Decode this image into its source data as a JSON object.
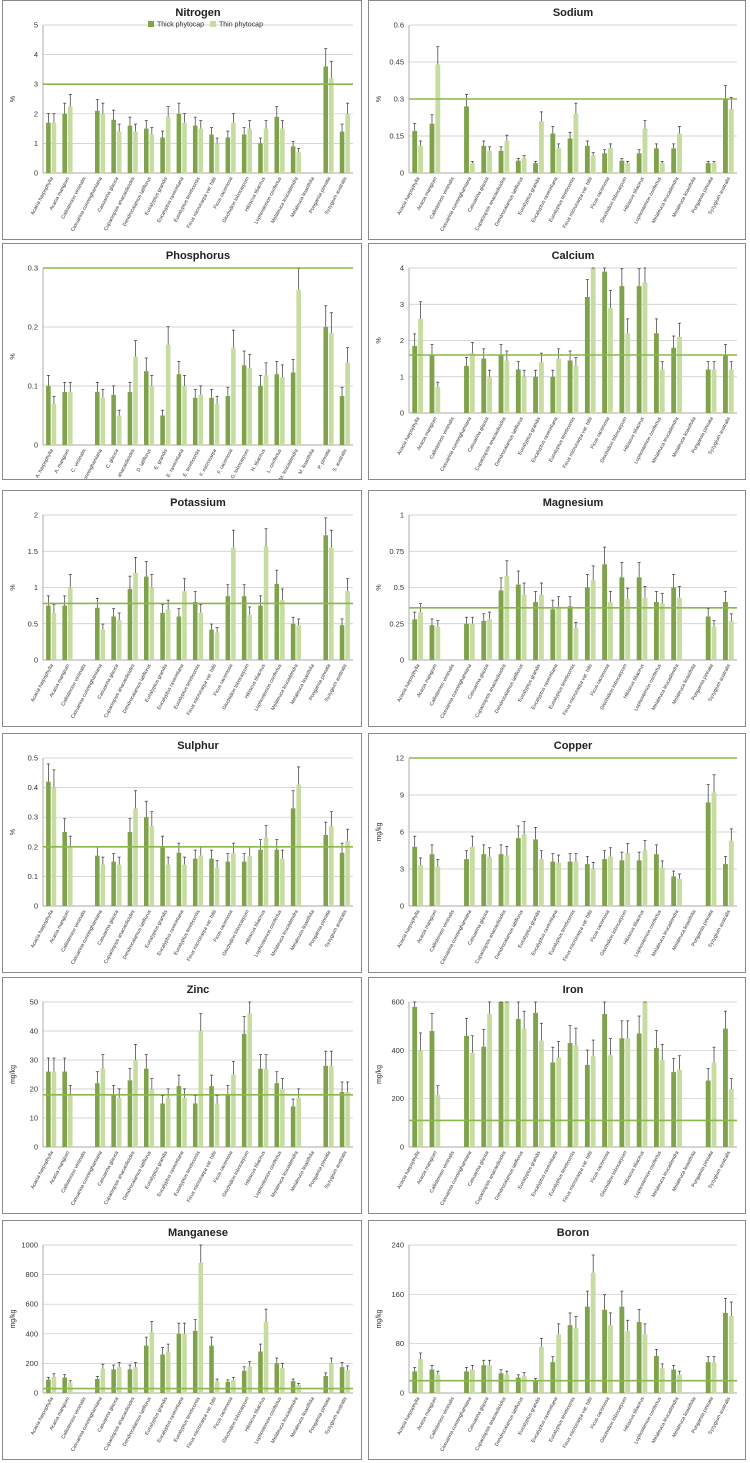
{
  "legend": {
    "thick": "Thick phytocap",
    "thin": "Thin phytocap"
  },
  "colors": {
    "thick": "#7ea34a",
    "thin": "#c6dca0",
    "line": "#8ab84a",
    "grid": "#c8c8c8",
    "err": "#333333"
  },
  "full_categories": [
    "Acacia harpophylla",
    "Acacia mangium",
    "Callistemon viminalis",
    "Casuarina cunninghamiana",
    "Casuarina glauca",
    "Cupaniopsis anacardioides",
    "Dendrocalamus latiflorus",
    "Eucalyptus grandis",
    "Eucalyptus raveretiana",
    "Eucalyptus tereticornis",
    "Ficus microcarpa var. hillii",
    "Ficus racemosa",
    "Glochidion lobocarpum",
    "Hibiscus tiliaceus",
    "Lophostemon confertus",
    "Melaleuca leucadendra",
    "Melaleuca linariifolia",
    "Pongamia pinnata",
    "Syzygium australis"
  ],
  "abbr_categories": [
    "A. harpophylla",
    "A. mangium",
    "C. viminalis",
    "C. cunninghamiana",
    "C. glauca",
    "C. anacardioides",
    "D. latiflorus",
    "E. grandis",
    "E. raveretiana",
    "E. tereticornis",
    "F. microcarpa",
    "F. racemosa",
    "G. lobocarpum",
    "H. tiliaceus",
    "L. confertus",
    "M. leucadendra",
    "M. linariifolia",
    "P. pinnata",
    "S. australis"
  ],
  "chart_data": [
    {
      "type": "bar",
      "title": "Nitrogen",
      "ylabel": "%",
      "ylim": [
        0,
        5
      ],
      "yticks": [
        0,
        1,
        2,
        3,
        4,
        5
      ],
      "reference": 3,
      "legend": "top-center",
      "labels": "full",
      "series": [
        {
          "name": "Thick phytocap",
          "values": [
            1.7,
            2.0,
            null,
            2.1,
            1.8,
            1.6,
            1.5,
            1.2,
            2.0,
            1.6,
            1.3,
            1.2,
            1.3,
            1.0,
            1.9,
            0.9,
            null,
            3.6,
            1.4
          ]
        },
        {
          "name": "Thin phytocap",
          "values": [
            1.7,
            2.25,
            null,
            2.0,
            1.4,
            1.4,
            1.3,
            1.9,
            1.7,
            1.5,
            1.0,
            1.7,
            1.5,
            1.5,
            1.5,
            0.7,
            null,
            3.2,
            2.0
          ]
        }
      ]
    },
    {
      "type": "bar",
      "title": "Sodium",
      "ylabel": "%",
      "ylim": [
        0,
        0.6
      ],
      "yticks": [
        0,
        0.15,
        0.3,
        0.45,
        0.6
      ],
      "reference": 0.3,
      "labels": "full",
      "series": [
        {
          "name": "Thick phytocap",
          "values": [
            0.17,
            0.2,
            null,
            0.27,
            0.11,
            0.09,
            0.05,
            0.04,
            0.16,
            0.14,
            0.11,
            0.08,
            0.05,
            0.08,
            0.1,
            0.1,
            null,
            0.04,
            0.3
          ]
        },
        {
          "name": "Thin phytocap",
          "values": [
            0.11,
            0.44,
            null,
            0.04,
            0.09,
            0.13,
            0.06,
            0.21,
            0.1,
            0.24,
            0.07,
            0.1,
            0.04,
            0.18,
            0.04,
            0.16,
            null,
            0.04,
            0.26
          ]
        }
      ]
    },
    {
      "type": "bar",
      "title": "Phosphorus",
      "ylabel": "%",
      "ylim": [
        0,
        0.3
      ],
      "yticks": [
        0,
        0.1,
        0.2,
        0.3
      ],
      "reference": 0.3,
      "labels": "abbr",
      "series": [
        {
          "name": "Thick phytocap",
          "values": [
            0.1,
            0.09,
            null,
            0.09,
            0.085,
            0.09,
            0.125,
            0.05,
            0.12,
            0.08,
            0.08,
            0.083,
            0.135,
            0.1,
            0.12,
            0.123,
            null,
            0.2,
            0.083
          ]
        },
        {
          "name": "Thin phytocap",
          "values": [
            0.07,
            0.09,
            null,
            0.08,
            0.05,
            0.15,
            0.1,
            0.17,
            0.1,
            0.085,
            0.07,
            0.165,
            0.13,
            0.118,
            0.115,
            0.263,
            null,
            0.19,
            0.14
          ]
        }
      ]
    },
    {
      "type": "bar",
      "title": "Calcium",
      "ylabel": "%",
      "ylim": [
        0,
        4
      ],
      "yticks": [
        0,
        1,
        2,
        3,
        4
      ],
      "reference": 1.6,
      "labels": "full",
      "series": [
        {
          "name": "Thick phytocap",
          "values": [
            1.85,
            1.6,
            null,
            1.3,
            1.5,
            1.6,
            1.2,
            1.0,
            1.0,
            1.45,
            3.2,
            3.9,
            3.5,
            3.5,
            2.2,
            1.8,
            null,
            1.2,
            1.6
          ]
        },
        {
          "name": "Thin phytocap",
          "values": [
            2.6,
            0.72,
            null,
            1.65,
            1.0,
            1.45,
            1.0,
            1.4,
            1.5,
            1.3,
            4.0,
            2.9,
            2.2,
            3.6,
            1.2,
            2.1,
            null,
            1.2,
            1.2
          ]
        }
      ]
    },
    {
      "type": "bar",
      "title": "Potassium",
      "ylabel": "%",
      "ylim": [
        0,
        2
      ],
      "yticks": [
        0,
        0.5,
        1,
        1.5,
        2
      ],
      "reference": 0.78,
      "labels": "full",
      "series": [
        {
          "name": "Thick phytocap",
          "values": [
            0.75,
            0.75,
            null,
            0.72,
            0.6,
            0.98,
            1.15,
            0.65,
            0.6,
            0.8,
            0.42,
            0.88,
            0.88,
            0.75,
            1.05,
            0.5,
            null,
            1.72,
            0.48
          ]
        },
        {
          "name": "Thin phytocap",
          "values": [
            0.65,
            1.0,
            null,
            0.42,
            0.55,
            1.2,
            1.0,
            0.7,
            0.95,
            0.65,
            0.38,
            1.55,
            0.62,
            1.57,
            0.83,
            0.48,
            null,
            1.55,
            0.95
          ]
        }
      ]
    },
    {
      "type": "bar",
      "title": "Magnesium",
      "ylabel": "%",
      "ylim": [
        0,
        1
      ],
      "yticks": [
        0,
        0.25,
        0.5,
        0.75,
        1
      ],
      "reference": 0.36,
      "labels": "full",
      "series": [
        {
          "name": "Thick phytocap",
          "values": [
            0.28,
            0.24,
            null,
            0.25,
            0.27,
            0.48,
            0.52,
            0.4,
            0.35,
            0.37,
            0.5,
            0.66,
            0.57,
            0.57,
            0.4,
            0.5,
            null,
            0.3,
            0.4
          ]
        },
        {
          "name": "Thin phytocap",
          "values": [
            0.33,
            0.23,
            null,
            0.25,
            0.28,
            0.58,
            0.45,
            0.45,
            0.37,
            0.22,
            0.55,
            0.4,
            0.42,
            0.43,
            0.39,
            0.43,
            null,
            0.23,
            0.27
          ]
        }
      ]
    },
    {
      "type": "bar",
      "title": "Sulphur",
      "ylabel": "%",
      "ylim": [
        0,
        0.5
      ],
      "yticks": [
        0,
        0.1,
        0.2,
        0.3,
        0.4,
        0.5
      ],
      "reference": 0.2,
      "labels": "full",
      "series": [
        {
          "name": "Thick phytocap",
          "values": [
            0.42,
            0.25,
            null,
            0.17,
            0.15,
            0.25,
            0.3,
            0.2,
            0.18,
            0.16,
            0.16,
            0.15,
            0.15,
            0.19,
            0.19,
            0.33,
            null,
            0.24,
            0.18
          ]
        },
        {
          "name": "Thin phytocap",
          "values": [
            0.4,
            0.2,
            null,
            0.14,
            0.14,
            0.33,
            0.27,
            0.14,
            0.14,
            0.17,
            0.13,
            0.18,
            0.17,
            0.23,
            0.16,
            0.41,
            null,
            0.27,
            0.22
          ]
        }
      ]
    },
    {
      "type": "bar",
      "title": "Copper",
      "ylabel": "mg/kg",
      "ylim": [
        0,
        12
      ],
      "yticks": [
        0,
        3,
        6,
        9,
        12
      ],
      "reference": 12,
      "labels": "full",
      "series": [
        {
          "name": "Thick phytocap",
          "values": [
            4.8,
            4.2,
            null,
            3.8,
            4.2,
            4.2,
            5.5,
            5.4,
            3.6,
            3.6,
            3.4,
            3.8,
            3.7,
            3.7,
            4.2,
            2.4,
            null,
            8.4,
            3.4
          ]
        },
        {
          "name": "Thin phytocap",
          "values": [
            3.3,
            3.2,
            null,
            4.8,
            4.0,
            4.1,
            5.8,
            3.8,
            3.5,
            3.6,
            3.0,
            4.0,
            4.3,
            4.5,
            3.1,
            2.2,
            null,
            9.2,
            5.3
          ]
        }
      ]
    },
    {
      "type": "bar",
      "title": "Zinc",
      "ylabel": "mg/kg",
      "ylim": [
        0,
        50
      ],
      "yticks": [
        0,
        10,
        20,
        30,
        40,
        50
      ],
      "reference": 18,
      "labels": "full",
      "series": [
        {
          "name": "Thick phytocap",
          "values": [
            26,
            26,
            null,
            22,
            18,
            23,
            27,
            15,
            21,
            15,
            21,
            18,
            39,
            27,
            22,
            14,
            null,
            28,
            19
          ]
        },
        {
          "name": "Thin phytocap",
          "values": [
            26,
            18,
            null,
            27,
            17,
            30,
            20,
            17,
            17,
            40,
            15,
            25,
            46,
            27,
            20,
            17,
            null,
            28,
            19
          ]
        }
      ]
    },
    {
      "type": "bar",
      "title": "Iron",
      "ylabel": "mg/kg",
      "ylim": [
        0,
        600
      ],
      "yticks": [
        0,
        200,
        400,
        600
      ],
      "reference": 110,
      "labels": "full",
      "series": [
        {
          "name": "Thick phytocap",
          "values": [
            580,
            480,
            null,
            460,
            415,
            600,
            530,
            555,
            350,
            430,
            340,
            550,
            450,
            470,
            410,
            310,
            null,
            275,
            490
          ]
        },
        {
          "name": "Thin phytocap",
          "values": [
            400,
            215,
            null,
            390,
            550,
            600,
            490,
            440,
            370,
            420,
            375,
            380,
            450,
            600,
            360,
            320,
            null,
            350,
            240
          ]
        }
      ]
    },
    {
      "type": "bar",
      "title": "Manganese",
      "ylabel": "mg/kg",
      "ylim": [
        0,
        1000
      ],
      "yticks": [
        0,
        200,
        400,
        600,
        800,
        1000
      ],
      "reference": 30,
      "labels": "full",
      "series": [
        {
          "name": "Thick phytocap",
          "values": [
            90,
            105,
            null,
            95,
            160,
            160,
            320,
            260,
            400,
            420,
            320,
            75,
            150,
            280,
            200,
            80,
            null,
            115,
            175
          ]
        },
        {
          "name": "Thin phytocap",
          "values": [
            110,
            70,
            null,
            165,
            175,
            175,
            410,
            280,
            400,
            880,
            80,
            90,
            180,
            480,
            170,
            55,
            null,
            200,
            155
          ]
        }
      ]
    },
    {
      "type": "bar",
      "title": "Boron",
      "ylabel": "mg/kg",
      "ylim": [
        0,
        240
      ],
      "yticks": [
        0,
        80,
        160,
        240
      ],
      "reference": 20,
      "labels": "full",
      "series": [
        {
          "name": "Thick phytocap",
          "values": [
            35,
            38,
            null,
            35,
            45,
            32,
            25,
            20,
            50,
            110,
            140,
            135,
            140,
            115,
            60,
            38,
            null,
            50,
            130
          ]
        },
        {
          "name": "Thin phytocap",
          "values": [
            55,
            30,
            null,
            38,
            45,
            30,
            28,
            75,
            95,
            105,
            195,
            110,
            100,
            95,
            40,
            30,
            null,
            50,
            125
          ]
        }
      ]
    }
  ]
}
